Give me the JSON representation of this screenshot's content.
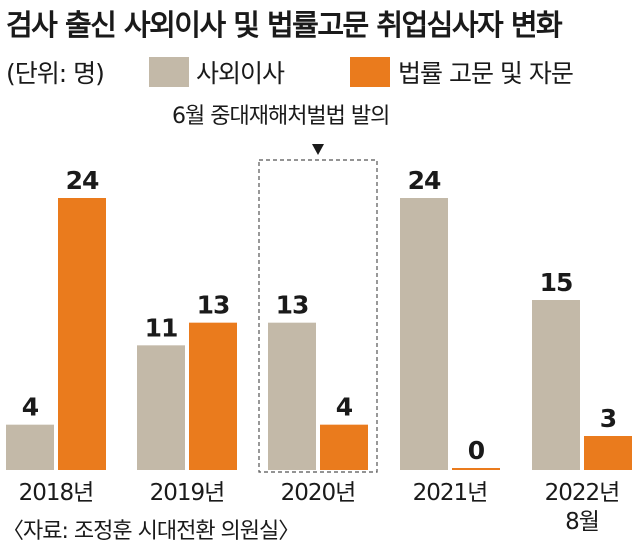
{
  "title": "검사 출신 사외이사 및 법률고문 취업심사자 변화",
  "unit": "(단위: 명)",
  "annotation": "6월 중대재해처벌법 발의",
  "source": "〈자료: 조정훈 시대전환 의원실〉",
  "colors": {
    "outside_director": "#c3b9a8",
    "legal_advisor": "#ea7b1d",
    "highlight_border": "#555555"
  },
  "chart_data": {
    "type": "bar",
    "title": "검사 출신 사외이사 및 법률고문 취업심사자 변화",
    "unit": "(단위: 명)",
    "categories": [
      "2018년",
      "2019년",
      "2020년",
      "2021년",
      "2022년 8월"
    ],
    "category_lines": [
      [
        "2018년"
      ],
      [
        "2019년"
      ],
      [
        "2020년"
      ],
      [
        "2021년"
      ],
      [
        "2022년",
        "8월"
      ]
    ],
    "series": [
      {
        "name": "사외이사",
        "values": [
          4,
          11,
          13,
          24,
          15
        ],
        "color": "#c3b9a8"
      },
      {
        "name": "법률 고문 및 자문",
        "values": [
          24,
          13,
          4,
          0,
          3
        ],
        "color": "#ea7b1d"
      }
    ],
    "ylim": [
      0,
      24
    ],
    "grid": false,
    "legend_position": "top",
    "highlight": {
      "category": "2020년",
      "label": "6월 중대재해처벌법 발의"
    }
  }
}
